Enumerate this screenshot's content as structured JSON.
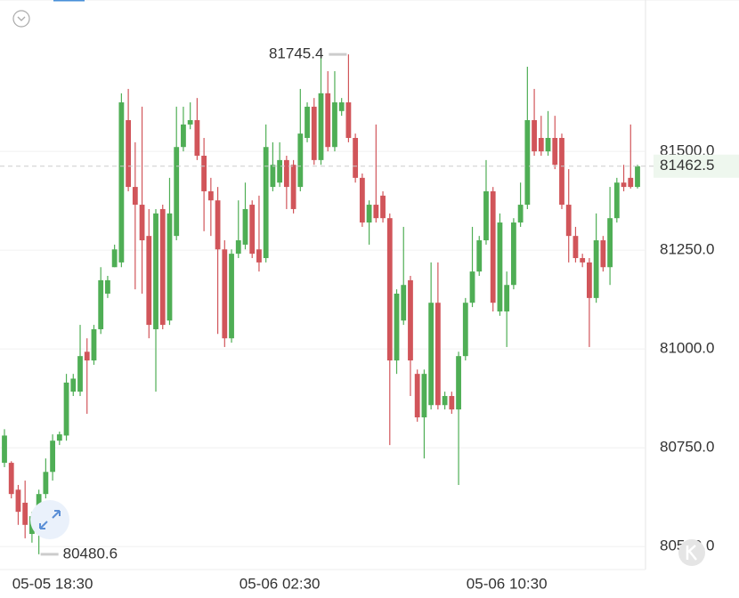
{
  "chart_data": {
    "type": "candlestick",
    "up_color": "#4fae55",
    "down_color": "#d1555a",
    "grid": true,
    "ylim": [
      80442,
      81883
    ],
    "yticks": [
      {
        "value": 81500,
        "label": "81500.0"
      },
      {
        "value": 81250,
        "label": "81250.0"
      },
      {
        "value": 81000,
        "label": "81000.0"
      },
      {
        "value": 80750,
        "label": "80750.0"
      },
      {
        "value": 80500,
        "label": "80500.0"
      }
    ],
    "x": [
      null,
      null,
      null,
      null,
      null,
      null,
      null,
      "05-05 18:30",
      null,
      null,
      null,
      null,
      null,
      null,
      null,
      null,
      null,
      null,
      null,
      null,
      null,
      null,
      null,
      null,
      null,
      null,
      null,
      null,
      null,
      null,
      null,
      null,
      null,
      null,
      null,
      null,
      null,
      null,
      null,
      null,
      "05-06 02:30",
      null,
      null,
      null,
      null,
      null,
      null,
      null,
      null,
      null,
      null,
      null,
      null,
      null,
      null,
      null,
      null,
      null,
      null,
      null,
      null,
      null,
      null,
      null,
      null,
      null,
      null,
      null,
      null,
      null,
      null,
      null,
      null,
      "05-06 10:30",
      null,
      null,
      null,
      null,
      null,
      null,
      null,
      null,
      null,
      null,
      null,
      null,
      null,
      null,
      null,
      null,
      null,
      null,
      null
    ],
    "open": [
      80712,
      80712,
      80644,
      80611,
      80532,
      80532,
      80633,
      80689,
      80768,
      80781,
      80892,
      80892,
      80993,
      80971,
      81050,
      81140,
      81207,
      81219,
      81579,
      81410,
      81365,
      81286,
      81050,
      81354,
      81072,
      81286,
      81511,
      81568,
      81579,
      81489,
      81399,
      81376,
      81252,
      81027,
      81241,
      81264,
      81365,
      81252,
      81230,
      81410,
      81421,
      81478,
      81466,
      81410,
      81534,
      81613,
      81478,
      81647,
      81511,
      81602,
      81624,
      81534,
      81433,
      81320,
      81365,
      81388,
      81331,
      80971,
      81072,
      81174,
      80937,
      80827,
      80858,
      81117,
      80858,
      80881,
      80847,
      80982,
      81117,
      81196,
      81275,
      81399,
      81095,
      81095,
      81162,
      81320,
      81365,
      81579,
      81534,
      81500,
      81534,
      81534,
      81365,
      81286,
      81230,
      81219,
      81129,
      81275,
      81207,
      81331,
      81421,
      81433,
      81410
    ],
    "high": [
      80797,
      80716,
      80656,
      80667,
      80588,
      80644,
      80723,
      80784,
      80791,
      80937,
      80937,
      81061,
      81027,
      81061,
      81207,
      81185,
      81264,
      81647,
      81658,
      81523,
      81613,
      81354,
      81354,
      81365,
      81433,
      81613,
      81613,
      81624,
      81635,
      81534,
      81433,
      81410,
      81275,
      81252,
      81376,
      81421,
      81376,
      81388,
      81568,
      81523,
      81523,
      81489,
      81478,
      81658,
      81624,
      81635,
      81737,
      81703,
      81703,
      81635,
      81745.4,
      81545,
      81444,
      81376,
      81568,
      81399,
      81343,
      81151,
      81309,
      81185,
      80948,
      80948,
      81219,
      81219,
      80892,
      80892,
      80993,
      81129,
      81309,
      81286,
      81478,
      81410,
      81343,
      81196,
      81331,
      81421,
      81714,
      81658,
      81590,
      81602,
      81590,
      81545,
      81455,
      81309,
      81241,
      81230,
      81343,
      81286,
      81410,
      81433,
      81466,
      81568,
      81466
    ],
    "low": [
      80701,
      80622,
      80555,
      80521,
      80510,
      80480.6,
      80622,
      80667,
      80757,
      80768,
      80881,
      80881,
      80836,
      80960,
      81038,
      81129,
      81207,
      81207,
      81399,
      81151,
      81140,
      81027,
      80892,
      81050,
      81061,
      81275,
      81500,
      81556,
      81478,
      81298,
      81286,
      81038,
      81005,
      81016,
      81230,
      81252,
      81230,
      81196,
      81219,
      81399,
      81410,
      81354,
      81343,
      81399,
      81523,
      81466,
      81466,
      81500,
      81500,
      81590,
      81523,
      81421,
      81309,
      81264,
      81320,
      81320,
      80757,
      80937,
      81061,
      80881,
      80816,
      80723,
      80847,
      80847,
      80847,
      80836,
      80656,
      80971,
      81106,
      81185,
      81264,
      81095,
      81084,
      81005,
      81151,
      81309,
      81354,
      81489,
      81489,
      81489,
      81455,
      81354,
      81219,
      81219,
      81207,
      81005,
      81117,
      81196,
      81162,
      81320,
      81399,
      81406,
      81406
    ],
    "close": [
      80781,
      80633,
      80588,
      80555,
      80577,
      80633,
      80689,
      80768,
      80784,
      80915,
      80925,
      80982,
      80971,
      81050,
      81174,
      81174,
      81252,
      81624,
      81410,
      81365,
      81275,
      81061,
      81343,
      81061,
      81343,
      81511,
      81568,
      81579,
      81489,
      81399,
      81376,
      81252,
      81027,
      81241,
      81275,
      81354,
      81241,
      81219,
      81511,
      81466,
      81478,
      81410,
      81354,
      81545,
      81613,
      81478,
      81647,
      81511,
      81624,
      81624,
      81534,
      81433,
      81320,
      81365,
      81331,
      81331,
      80971,
      81140,
      81162,
      80971,
      80827,
      80937,
      81117,
      80858,
      80881,
      80847,
      80982,
      81117,
      81196,
      81275,
      81399,
      81117,
      81320,
      81162,
      81320,
      81365,
      81579,
      81500,
      81500,
      81534,
      81466,
      81365,
      81286,
      81230,
      81219,
      81129,
      81275,
      81207,
      81331,
      81421,
      81410,
      81410,
      81462.5
    ]
  }
}
